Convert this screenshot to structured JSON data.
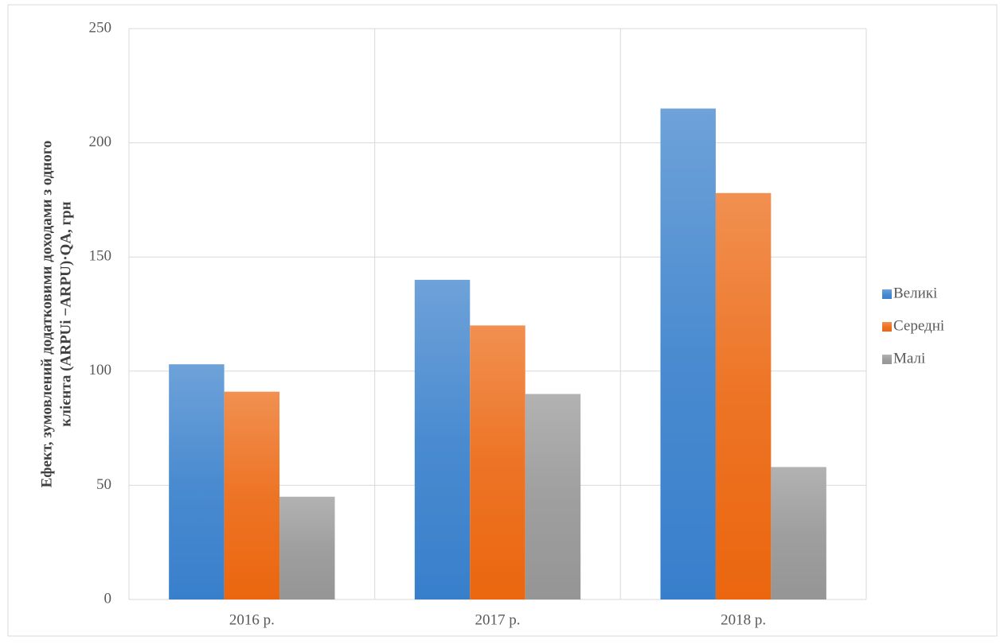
{
  "chart_data": {
    "type": "bar",
    "y_label": [
      "Ефект, зумовлений додатковими доходами з одного",
      "клієнта (ARPUi −ARPU)·QA,  грн"
    ],
    "categories": [
      "2016 р.",
      "2017 р.",
      "2018 р."
    ],
    "series": [
      {
        "name": "Великі",
        "color": "#4a8bd0",
        "values": [
          103,
          140,
          215
        ]
      },
      {
        "name": "Середні",
        "color": "#ed7425",
        "values": [
          91,
          120,
          178
        ]
      },
      {
        "name": "Малі",
        "color": "#9f9f9f",
        "values": [
          45,
          90,
          58
        ]
      }
    ],
    "ylim": [
      0,
      250
    ],
    "yticks": [
      0,
      50,
      100,
      150,
      200,
      250
    ],
    "grid": true,
    "legend": "right"
  }
}
